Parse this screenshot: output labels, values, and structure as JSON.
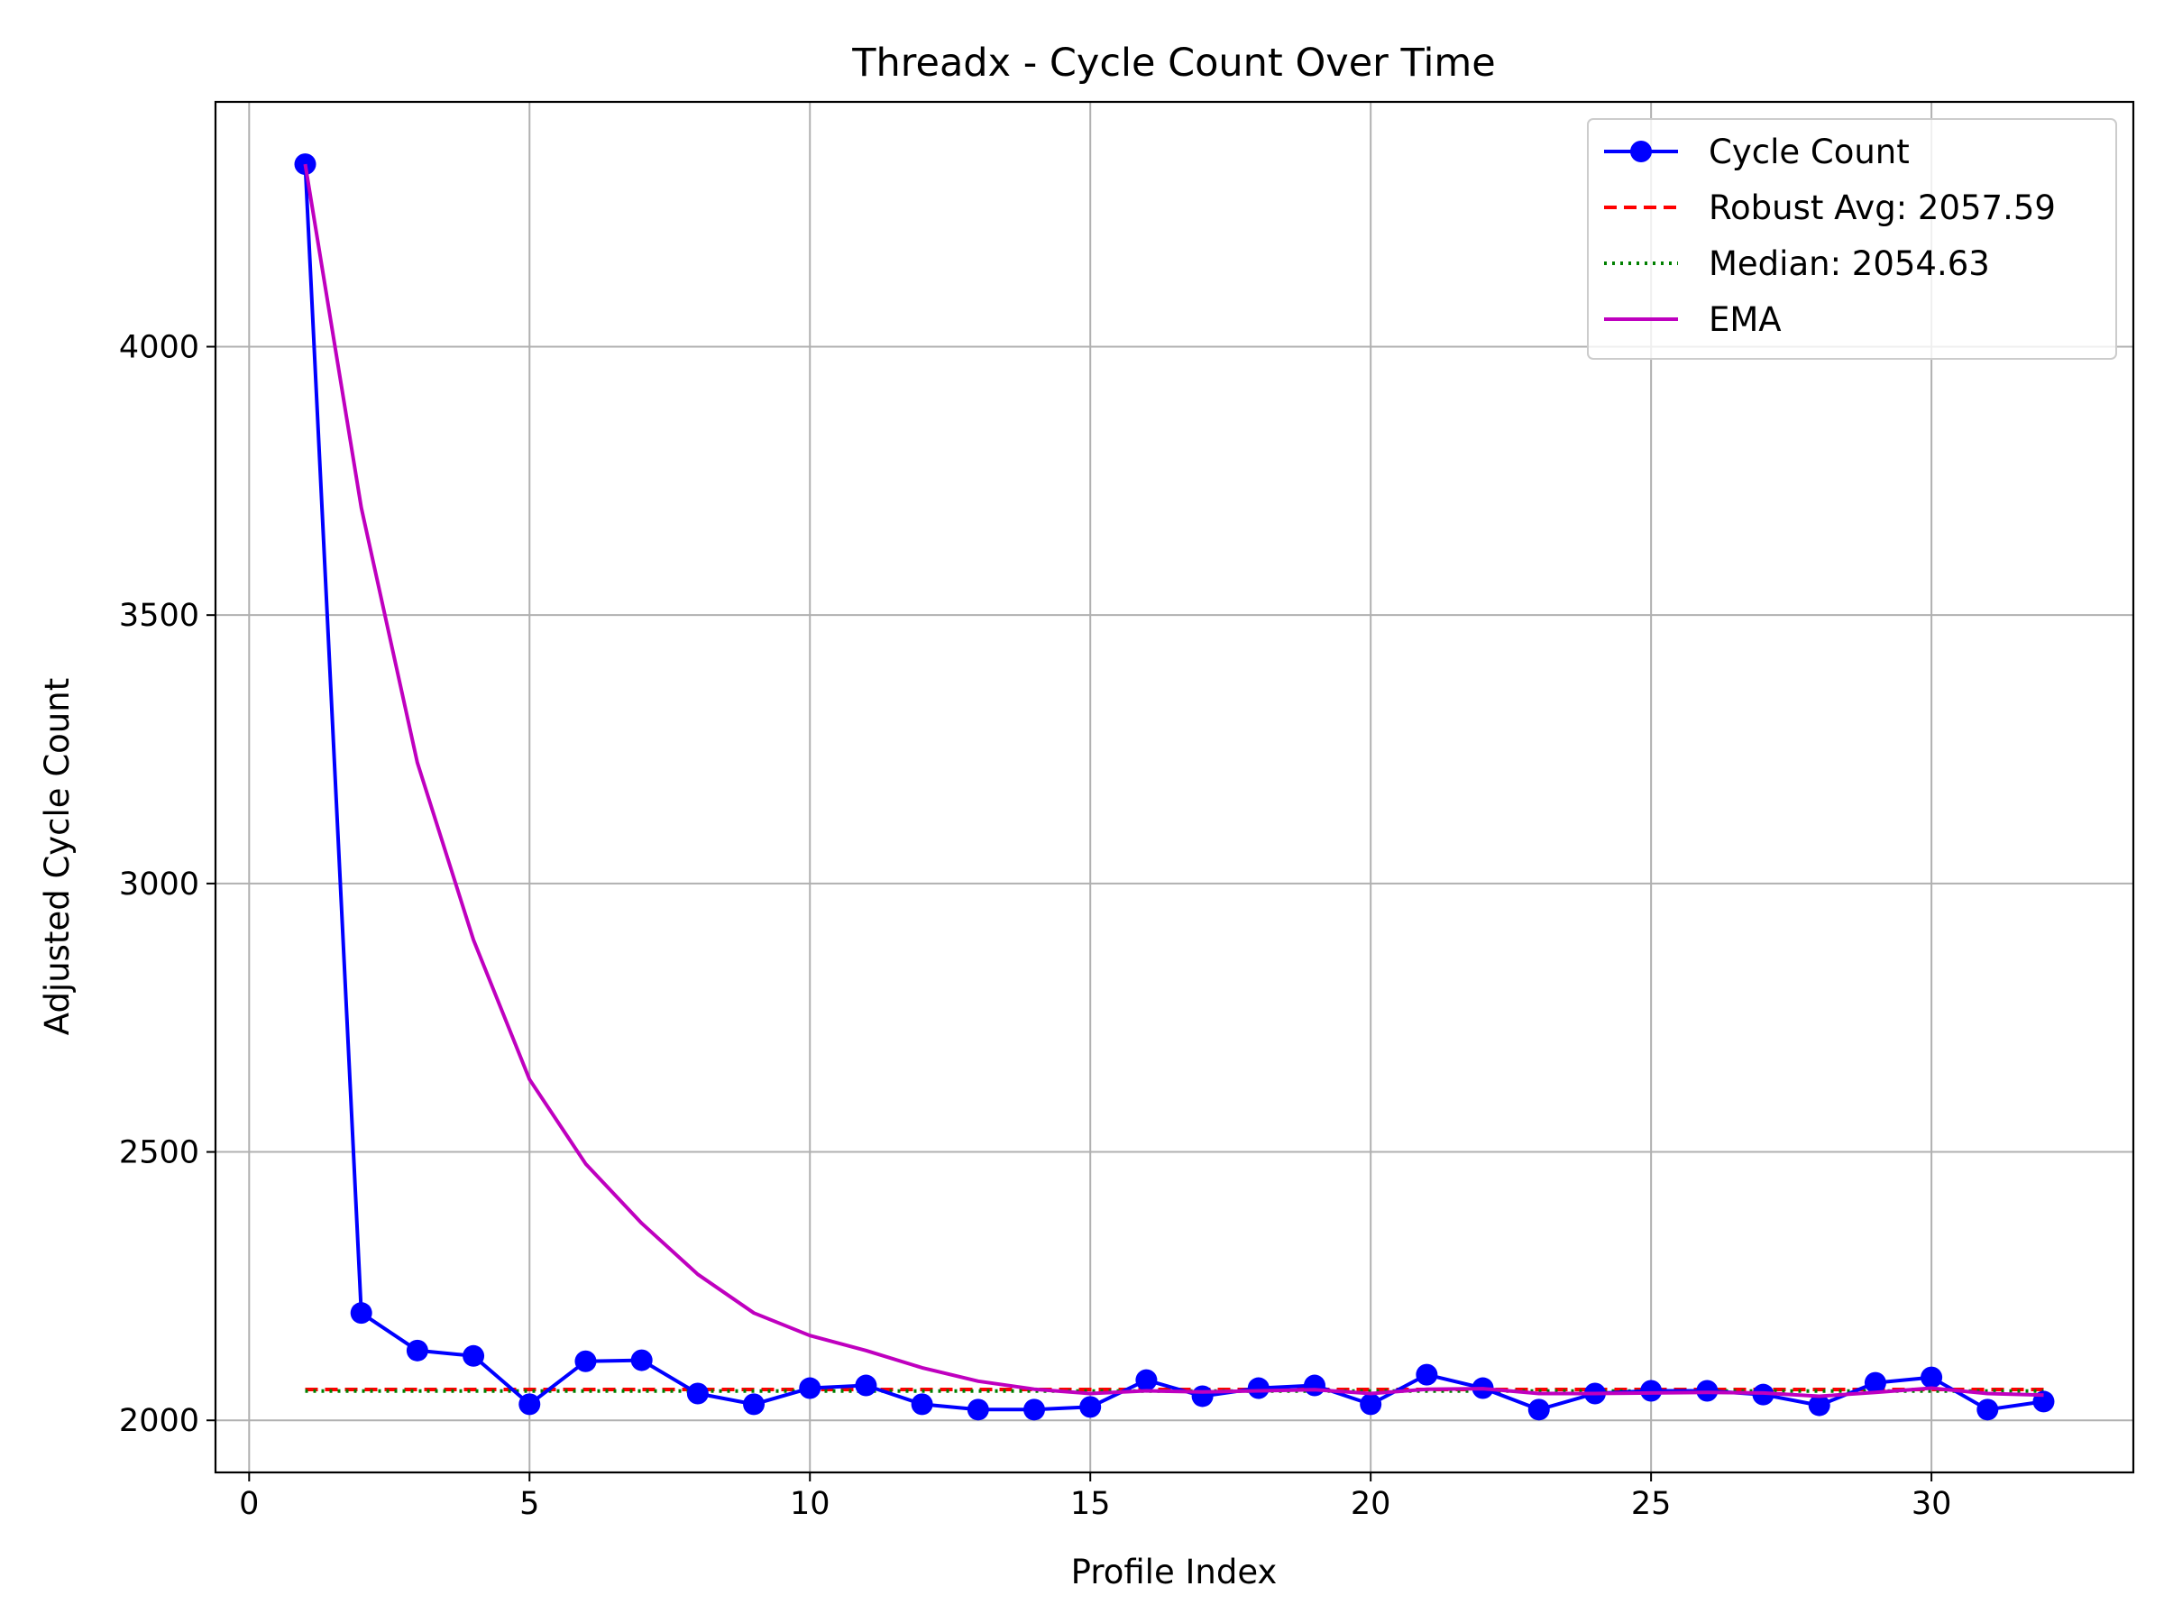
{
  "chart_data": {
    "type": "line",
    "title": "Threadx - Cycle Count Over Time",
    "xlabel": "Profile Index",
    "ylabel": "Adjusted Cycle Count",
    "xlim": [
      -0.6,
      33.6
    ],
    "ylim": [
      1903,
      4456
    ],
    "xticks": [
      0,
      5,
      10,
      15,
      20,
      25,
      30
    ],
    "yticks": [
      2000,
      2500,
      3000,
      3500,
      4000
    ],
    "grid": true,
    "legend_position": "top-right",
    "x": [
      1,
      2,
      3,
      4,
      5,
      6,
      7,
      8,
      9,
      10,
      11,
      12,
      13,
      14,
      15,
      16,
      17,
      18,
      19,
      20,
      21,
      22,
      23,
      24,
      25,
      26,
      27,
      28,
      29,
      30,
      31,
      32
    ],
    "series": [
      {
        "name": "Cycle Count",
        "style": "solid-marker",
        "color": "#0000ff",
        "values": [
          4340,
          2200,
          2130,
          2120,
          2030,
          2110,
          2112,
          2050,
          2030,
          2060,
          2065,
          2030,
          2020,
          2020,
          2025,
          2075,
          2045,
          2060,
          2065,
          2030,
          2085,
          2060,
          2020,
          2050,
          2055,
          2055,
          2048,
          2028,
          2070,
          2080,
          2020,
          2035
        ]
      },
      {
        "name": "Robust Avg: 2057.59",
        "style": "dashed",
        "color": "#ff0000",
        "values": [
          2057.59,
          2057.59,
          2057.59,
          2057.59,
          2057.59,
          2057.59,
          2057.59,
          2057.59,
          2057.59,
          2057.59,
          2057.59,
          2057.59,
          2057.59,
          2057.59,
          2057.59,
          2057.59,
          2057.59,
          2057.59,
          2057.59,
          2057.59,
          2057.59,
          2057.59,
          2057.59,
          2057.59,
          2057.59,
          2057.59,
          2057.59,
          2057.59,
          2057.59,
          2057.59,
          2057.59,
          2057.59
        ]
      },
      {
        "name": "Median: 2054.63",
        "style": "dotted",
        "color": "#008000",
        "values": [
          2054.63,
          2054.63,
          2054.63,
          2054.63,
          2054.63,
          2054.63,
          2054.63,
          2054.63,
          2054.63,
          2054.63,
          2054.63,
          2054.63,
          2054.63,
          2054.63,
          2054.63,
          2054.63,
          2054.63,
          2054.63,
          2054.63,
          2054.63,
          2054.63,
          2054.63,
          2054.63,
          2054.63,
          2054.63,
          2054.63,
          2054.63,
          2054.63,
          2054.63,
          2054.63,
          2054.63,
          2054.63
        ]
      },
      {
        "name": "EMA",
        "style": "solid",
        "color": "#bf00bf",
        "values": [
          4340,
          3700,
          3225,
          2895,
          2635,
          2478,
          2367,
          2272,
          2200,
          2158,
          2130,
          2098,
          2073,
          2058,
          2050,
          2055,
          2053,
          2055,
          2057,
          2050,
          2058,
          2059,
          2050,
          2050,
          2051,
          2052,
          2051,
          2045,
          2052,
          2060,
          2050,
          2047
        ]
      }
    ]
  }
}
